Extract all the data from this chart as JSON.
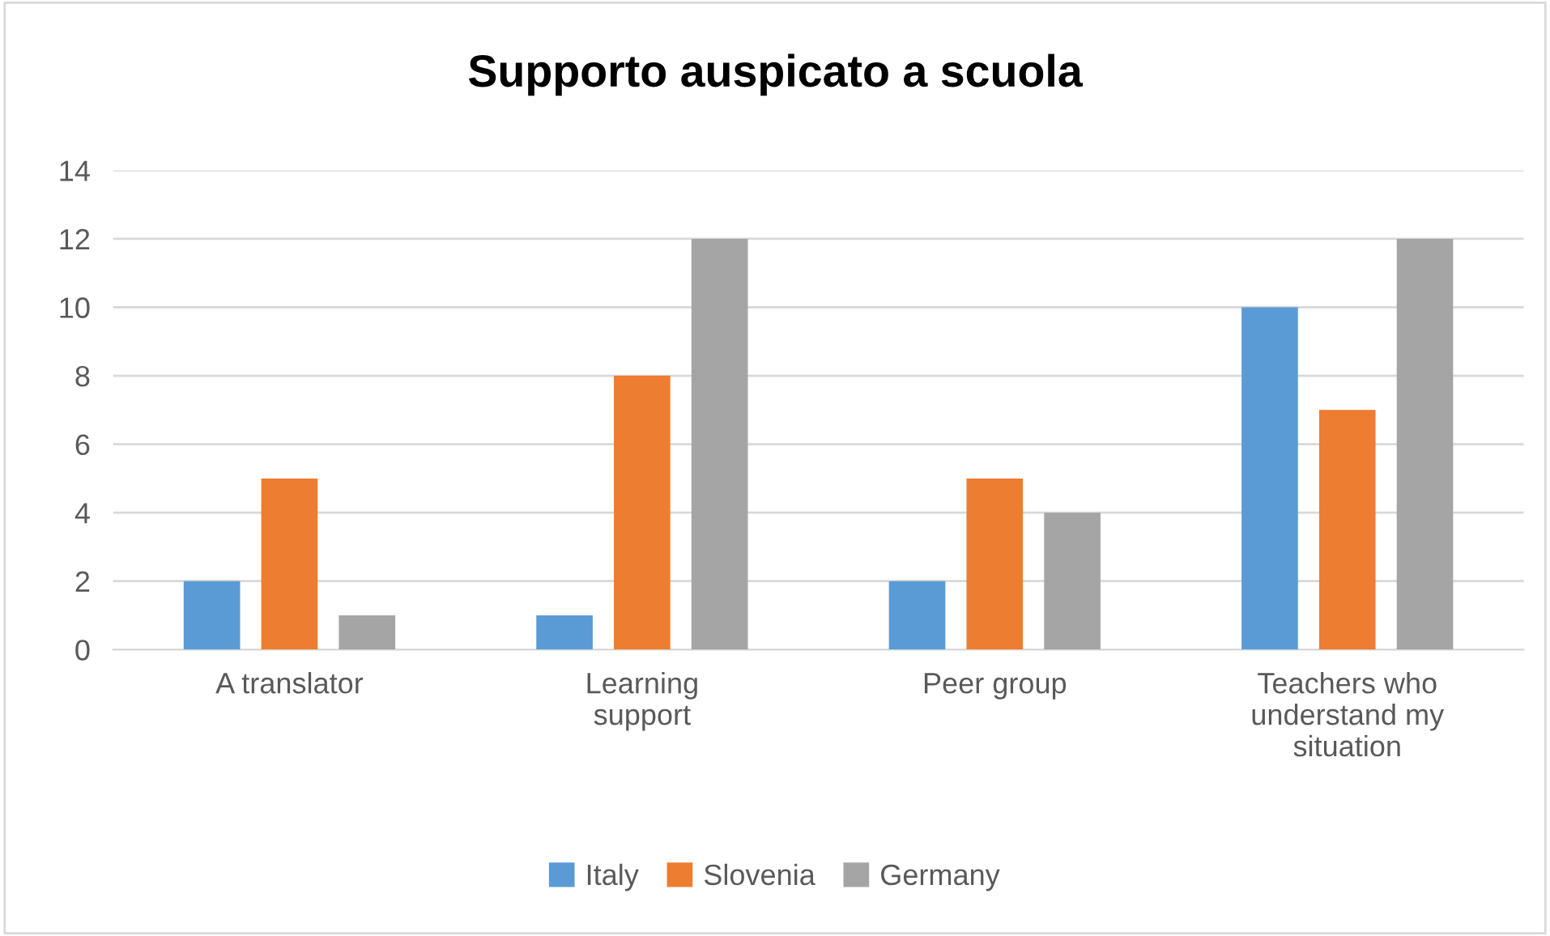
{
  "chart_data": {
    "type": "bar",
    "title": "Supporto auspicato a scuola",
    "categories": [
      "A translator",
      "Learning support",
      "Peer group",
      "Teachers who understand my situation"
    ],
    "series": [
      {
        "name": "Italy",
        "color": "#5b9bd5",
        "values": [
          2,
          1,
          2,
          10
        ]
      },
      {
        "name": "Slovenia",
        "color": "#ed7d31",
        "values": [
          5,
          8,
          5,
          7
        ]
      },
      {
        "name": "Germany",
        "color": "#a5a5a5",
        "values": [
          1,
          12,
          4,
          12
        ]
      }
    ],
    "ylim": [
      0,
      14
    ],
    "yticks": [
      0,
      2,
      4,
      6,
      8,
      10,
      12,
      14
    ],
    "grid": "y",
    "legend": "bottom"
  }
}
